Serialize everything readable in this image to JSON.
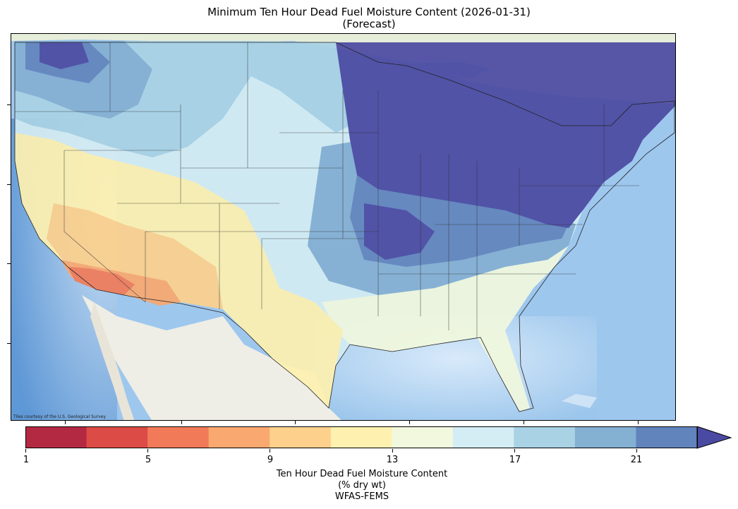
{
  "title": {
    "line1": "Minimum Ten Hour Dead Fuel Moisture Content (2026-01-31)",
    "line2": "(Forecast)"
  },
  "attribution": "Tiles courtesy of the U.S. Geological Survey",
  "colorbar": {
    "title_line1": "Ten Hour Dead Fuel Moisture Content",
    "title_line2": "(% dry wt)",
    "title_line3": "WFAS-FEMS",
    "tick_labels": [
      "1",
      "5",
      "9",
      "13",
      "17",
      "21"
    ],
    "bins": [
      {
        "color": "#b42942"
      },
      {
        "color": "#dc4b45"
      },
      {
        "color": "#f17b59"
      },
      {
        "color": "#f9a86f"
      },
      {
        "color": "#fdd08c"
      },
      {
        "color": "#fef1b0"
      },
      {
        "color": "#f1f8de"
      },
      {
        "color": "#d4ecf3"
      },
      {
        "color": "#a9d2e5"
      },
      {
        "color": "#84b0d2"
      },
      {
        "color": "#6284bd"
      }
    ],
    "extend_color": "#4b4aa2"
  },
  "colors": {
    "ocean": "#b7d8f0",
    "land_background": "#e9eee0",
    "mexico_land": "#eeeee6",
    "great_lakes": "#9ec9ee"
  }
}
